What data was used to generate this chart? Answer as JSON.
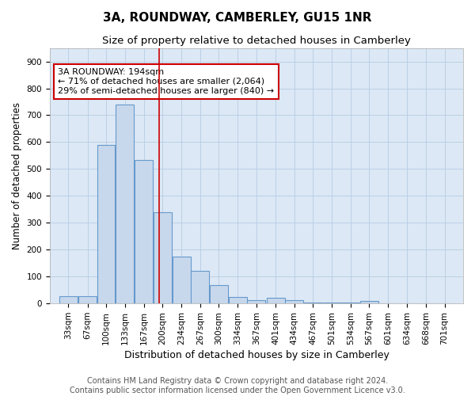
{
  "title": "3A, ROUNDWAY, CAMBERLEY, GU15 1NR",
  "subtitle": "Size of property relative to detached houses in Camberley",
  "xlabel": "Distribution of detached houses by size in Camberley",
  "ylabel": "Number of detached properties",
  "bin_labels": [
    "33sqm",
    "67sqm",
    "100sqm",
    "133sqm",
    "167sqm",
    "200sqm",
    "234sqm",
    "267sqm",
    "300sqm",
    "334sqm",
    "367sqm",
    "401sqm",
    "434sqm",
    "467sqm",
    "501sqm",
    "534sqm",
    "567sqm",
    "601sqm",
    "634sqm",
    "668sqm",
    "701sqm"
  ],
  "bin_centers": [
    33,
    67,
    100,
    133,
    167,
    200,
    234,
    267,
    300,
    334,
    367,
    401,
    434,
    467,
    501,
    534,
    567,
    601,
    634,
    668,
    701
  ],
  "values": [
    27,
    27,
    590,
    740,
    535,
    338,
    175,
    120,
    67,
    25,
    13,
    20,
    13,
    5,
    5,
    5,
    8,
    0,
    0,
    0,
    0
  ],
  "bar_color": "#c8d8ec",
  "bar_edge_color": "#6699cc",
  "property_size": 194,
  "vline_color": "#cc0000",
  "annotation_text": "3A ROUNDWAY: 194sqm\n← 71% of detached houses are smaller (2,064)\n29% of semi-detached houses are larger (840) →",
  "annotation_box_facecolor": "#ffffff",
  "annotation_box_edgecolor": "#cc0000",
  "ylim": [
    0,
    950
  ],
  "yticks": [
    0,
    100,
    200,
    300,
    400,
    500,
    600,
    700,
    800,
    900
  ],
  "footer_line1": "Contains HM Land Registry data © Crown copyright and database right 2024.",
  "footer_line2": "Contains public sector information licensed under the Open Government Licence v3.0.",
  "grid_color": "#b8cce4",
  "plot_bg_color": "#dce8f5",
  "fig_bg_color": "#ffffff",
  "title_fontsize": 11,
  "subtitle_fontsize": 9.5,
  "xlabel_fontsize": 9,
  "ylabel_fontsize": 8.5,
  "tick_fontsize": 7.5,
  "annotation_fontsize": 8,
  "footer_fontsize": 7
}
